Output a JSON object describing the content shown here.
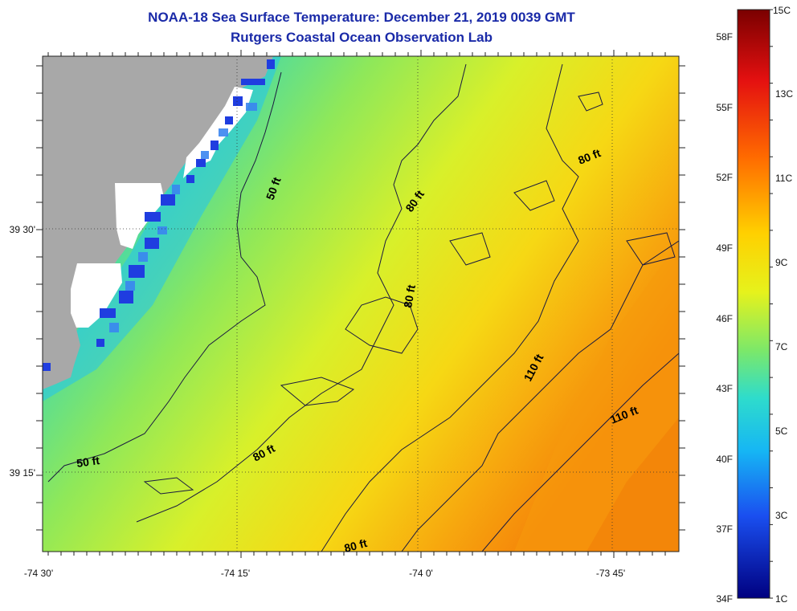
{
  "title": "NOAA-18 Sea Surface Temperature:  December 21, 2019 0039 GMT",
  "subtitle": "Rutgers Coastal Ocean Observation Lab",
  "axes": {
    "x_ticks": [
      "-74 30'",
      "-74 15'",
      "-74 0'",
      "-73 45'"
    ],
    "y_ticks": [
      "39 30'",
      "39 15'"
    ]
  },
  "colorbar": {
    "celsius": [
      "15C",
      "13C",
      "11C",
      "9C",
      "7C",
      "5C",
      "3C",
      "1C"
    ],
    "fahrenheit": [
      "58F",
      "55F",
      "52F",
      "49F",
      "46F",
      "43F",
      "40F",
      "37F",
      "34F"
    ],
    "min_c": 1,
    "max_c": 15
  },
  "depth_labels": [
    "50 ft",
    "50 ft",
    "80 ft",
    "80 ft",
    "80 ft",
    "80 ft",
    "80 ft",
    "110 ft",
    "110 ft"
  ],
  "colors": {
    "land": "#a8a8a8",
    "title": "#1a2aa8",
    "contour": "#1a1a40"
  }
}
